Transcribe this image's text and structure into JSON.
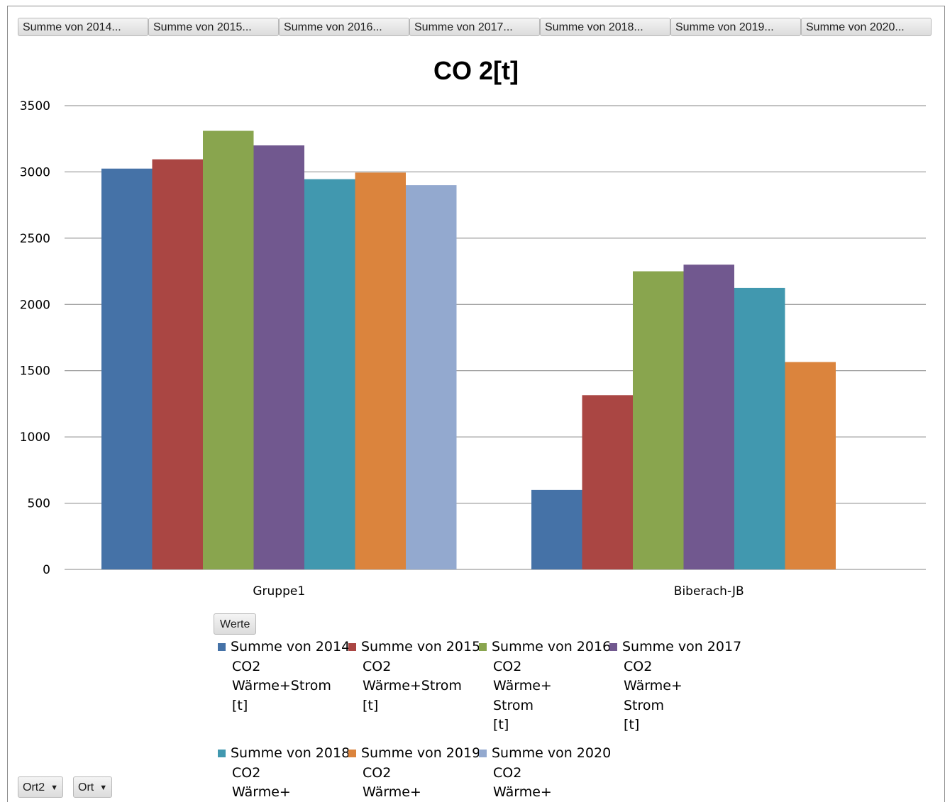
{
  "field_buttons": [
    "Summe von 2014...",
    "Summe von 2015...",
    "Summe von 2016...",
    "Summe von 2017...",
    "Summe von 2018...",
    "Summe von 2019...",
    "Summe von 2020..."
  ],
  "werte_button": "Werte",
  "row_fields": [
    {
      "label": "Ort2",
      "icon": "dropdown-arrow-icon"
    },
    {
      "label": "Ort",
      "icon": "dropdown-arrow-icon"
    }
  ],
  "legend": [
    {
      "lines": [
        "Summe von 2014",
        "CO2",
        "Wärme+Strom",
        "[t]"
      ]
    },
    {
      "lines": [
        "Summe von 2015",
        "CO2",
        "Wärme+Strom",
        "[t]"
      ]
    },
    {
      "lines": [
        "Summe von 2016",
        "CO2",
        "Wärme+",
        "Strom",
        "[t]"
      ]
    },
    {
      "lines": [
        "Summe von 2017",
        "CO2",
        "Wärme+",
        "Strom",
        "[t]"
      ]
    },
    {
      "lines": [
        "Summe von 2018",
        "CO2",
        "Wärme+"
      ]
    },
    {
      "lines": [
        "Summe von 2019",
        "CO2",
        "Wärme+"
      ]
    },
    {
      "lines": [
        "Summe von 2020",
        "CO2",
        "Wärme+"
      ]
    }
  ],
  "chart_data": {
    "type": "bar",
    "title": "CO 2[t]",
    "xlabel": "",
    "ylabel": "",
    "categories": [
      "Gruppe1",
      "Biberach-JB"
    ],
    "ylim": [
      0,
      3500
    ],
    "yticks": [
      0,
      500,
      1000,
      1500,
      2000,
      2500,
      3000,
      3500
    ],
    "grid": true,
    "legend_position": "bottom",
    "series": [
      {
        "name": "Summe von 2014 CO2 Wärme+Strom [t]",
        "color": "#4572a7",
        "values": [
          3025,
          600
        ]
      },
      {
        "name": "Summe von 2015 CO2 Wärme+Strom [t]",
        "color": "#aa4643",
        "values": [
          3095,
          1315
        ]
      },
      {
        "name": "Summe von 2016 CO2 Wärme+ Strom [t]",
        "color": "#89a54e",
        "values": [
          3310,
          2250
        ]
      },
      {
        "name": "Summe von 2017 CO2 Wärme+ Strom [t]",
        "color": "#71588f",
        "values": [
          3200,
          2300
        ]
      },
      {
        "name": "Summe von 2018 CO2 Wärme+",
        "color": "#4198af",
        "values": [
          2945,
          2125
        ]
      },
      {
        "name": "Summe von 2019 CO2 Wärme+",
        "color": "#db843d",
        "values": [
          2995,
          1565
        ]
      },
      {
        "name": "Summe von 2020 CO2 Wärme+",
        "color": "#93a9cf",
        "values": [
          2900,
          null
        ]
      }
    ]
  }
}
